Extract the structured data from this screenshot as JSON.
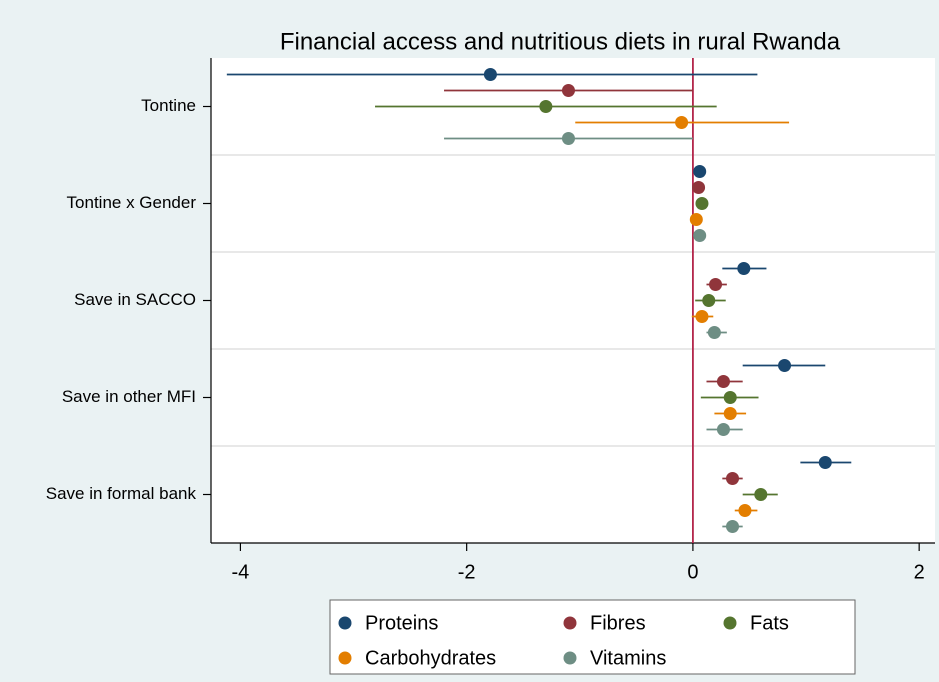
{
  "chart_data": {
    "type": "coefplot",
    "title": "Financial access and nutritious diets in rural Rwanda",
    "categories": [
      "Tontine",
      "Tontine x Gender",
      "Save in SACCO",
      "Save in other MFI",
      "Save in formal bank"
    ],
    "series": [
      {
        "name": "Proteins",
        "color": "#1a476f",
        "values": [
          -1.79,
          0.06,
          0.45,
          0.81,
          1.17
        ],
        "ci_low": [
          -4.12,
          0.03,
          0.26,
          0.44,
          0.95
        ],
        "ci_high": [
          0.57,
          0.09,
          0.65,
          1.17,
          1.4
        ]
      },
      {
        "name": "Fibres",
        "color": "#90353b",
        "values": [
          -1.1,
          0.05,
          0.2,
          0.27,
          0.35
        ],
        "ci_low": [
          -2.2,
          0.02,
          0.12,
          0.12,
          0.26
        ],
        "ci_high": [
          0.0,
          0.08,
          0.3,
          0.44,
          0.44
        ]
      },
      {
        "name": "Fats",
        "color": "#55752f",
        "values": [
          -1.3,
          0.08,
          0.14,
          0.33,
          0.6
        ],
        "ci_low": [
          -2.81,
          0.05,
          0.02,
          0.07,
          0.44
        ],
        "ci_high": [
          0.21,
          0.11,
          0.29,
          0.58,
          0.75
        ]
      },
      {
        "name": "Carbohydrates",
        "color": "#e37e00",
        "values": [
          -0.1,
          0.03,
          0.08,
          0.33,
          0.46
        ],
        "ci_low": [
          -1.04,
          0.0,
          -0.01,
          0.19,
          0.37
        ],
        "ci_high": [
          0.85,
          0.06,
          0.18,
          0.47,
          0.57
        ]
      },
      {
        "name": "Vitamins",
        "color": "#6e8e84",
        "values": [
          -1.1,
          0.06,
          0.19,
          0.27,
          0.35
        ],
        "ci_low": [
          -2.2,
          0.03,
          0.12,
          0.12,
          0.26
        ],
        "ci_high": [
          0.0,
          0.09,
          0.3,
          0.44,
          0.44
        ]
      }
    ],
    "xlim": [
      -4.26,
      2.14
    ],
    "xticks": [
      -4,
      -2,
      0,
      2
    ],
    "xline": 0,
    "xline_color": "#b3254a",
    "legend": "bottom"
  }
}
